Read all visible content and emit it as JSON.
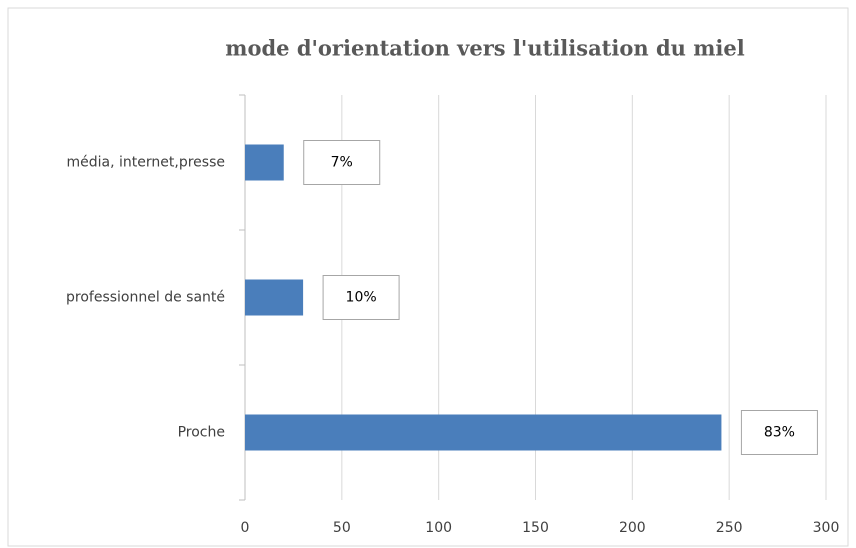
{
  "chart_data": {
    "type": "bar",
    "orientation": "horizontal",
    "title": "mode d'orientation vers l'utilisation du miel",
    "categories": [
      "média, internet,presse",
      "professionnel de santé",
      "Proche"
    ],
    "values": [
      20,
      30,
      246
    ],
    "data_labels": [
      "7%",
      "10%",
      "83%"
    ],
    "color": "#4a7ebb",
    "xlim": [
      0,
      300
    ],
    "xticks": [
      0,
      50,
      100,
      150,
      200,
      250,
      300
    ],
    "grid": true
  }
}
